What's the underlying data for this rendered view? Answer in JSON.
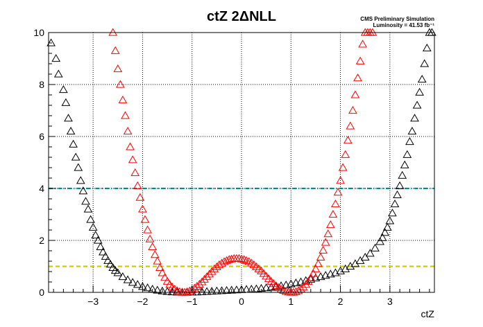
{
  "chart_data": {
    "type": "scatter",
    "title": "ctZ 2ΔNLL",
    "annotations": [
      "CMS Preliminary Simulation",
      "Luminosity = 41.53 fb⁻¹"
    ],
    "xlabel": "ctZ",
    "ylabel": "",
    "xlim": [
      -3.9,
      3.9
    ],
    "ylim": [
      0,
      10
    ],
    "x_ticks": [
      -3,
      -2,
      -1,
      0,
      1,
      2,
      3
    ],
    "y_ticks": [
      0,
      2,
      4,
      6,
      8,
      10
    ],
    "grid": true,
    "legend": "none",
    "reference_lines": [
      {
        "y": 4,
        "color": "#008b8b",
        "style": "dash-dot"
      },
      {
        "y": 1,
        "color": "#cccc00",
        "style": "dashed"
      }
    ],
    "series": [
      {
        "color": "#000000",
        "marker": "open-triangle",
        "x": [
          -3.85,
          -3.75,
          -3.7,
          -3.6,
          -3.55,
          -3.5,
          -3.45,
          -3.4,
          -3.35,
          -3.3,
          -3.25,
          -3.2,
          -3.15,
          -3.1,
          -3.05,
          -3.0,
          -2.95,
          -2.9,
          -2.85,
          -2.8,
          -2.75,
          -2.7,
          -2.65,
          -2.6,
          -2.55,
          -2.5,
          -2.4,
          -2.3,
          -2.2,
          -2.1,
          -2.0,
          -1.9,
          -1.8,
          -1.7,
          -1.6,
          -1.5,
          -1.4,
          -1.3,
          -1.2,
          -1.1,
          -1.0,
          -0.9,
          -0.8,
          -0.7,
          -0.6,
          -0.5,
          -0.4,
          -0.3,
          -0.2,
          -0.1,
          0.0,
          0.1,
          0.2,
          0.3,
          0.4,
          0.5,
          0.6,
          0.7,
          0.8,
          0.9,
          1.0,
          1.1,
          1.2,
          1.3,
          1.4,
          1.5,
          1.6,
          1.7,
          1.8,
          1.9,
          2.0,
          2.1,
          2.2,
          2.3,
          2.4,
          2.5,
          2.6,
          2.7,
          2.8,
          2.85,
          2.9,
          2.95,
          3.0,
          3.05,
          3.1,
          3.15,
          3.2,
          3.25,
          3.3,
          3.35,
          3.4,
          3.45,
          3.5,
          3.55,
          3.6,
          3.65,
          3.7,
          3.75,
          3.8,
          3.85
        ],
        "y": [
          9.6,
          9.0,
          8.4,
          7.8,
          7.3,
          6.7,
          6.2,
          5.7,
          5.2,
          4.8,
          4.3,
          3.9,
          3.5,
          3.2,
          2.8,
          2.5,
          2.2,
          2.0,
          1.75,
          1.55,
          1.38,
          1.22,
          1.08,
          0.95,
          0.84,
          0.75,
          0.6,
          0.48,
          0.38,
          0.3,
          0.22,
          0.17,
          0.12,
          0.08,
          0.05,
          0.03,
          0.015,
          0.005,
          0.0,
          0.0,
          0.005,
          0.01,
          0.02,
          0.03,
          0.04,
          0.05,
          0.06,
          0.07,
          0.08,
          0.09,
          0.1,
          0.11,
          0.12,
          0.13,
          0.15,
          0.17,
          0.19,
          0.22,
          0.25,
          0.28,
          0.32,
          0.36,
          0.4,
          0.45,
          0.5,
          0.55,
          0.6,
          0.65,
          0.7,
          0.75,
          0.82,
          0.9,
          1.0,
          1.1,
          1.22,
          1.35,
          1.5,
          1.7,
          1.95,
          2.1,
          2.3,
          2.5,
          2.75,
          3.05,
          3.4,
          3.75,
          4.1,
          4.5,
          4.9,
          5.3,
          5.8,
          6.2,
          6.7,
          7.2,
          7.7,
          8.2,
          8.8,
          9.4,
          10.0,
          10.0
        ]
      },
      {
        "color": "#ff0000",
        "marker": "open-triangle",
        "x": [
          -2.6,
          -2.55,
          -2.5,
          -2.45,
          -2.4,
          -2.35,
          -2.3,
          -2.25,
          -2.2,
          -2.15,
          -2.1,
          -2.05,
          -2.0,
          -1.95,
          -1.9,
          -1.85,
          -1.8,
          -1.75,
          -1.7,
          -1.65,
          -1.6,
          -1.55,
          -1.5,
          -1.45,
          -1.4,
          -1.35,
          -1.3,
          -1.25,
          -1.2,
          -1.15,
          -1.1,
          -1.05,
          -1.0,
          -0.95,
          -0.9,
          -0.85,
          -0.8,
          -0.75,
          -0.7,
          -0.65,
          -0.6,
          -0.55,
          -0.5,
          -0.45,
          -0.4,
          -0.35,
          -0.3,
          -0.25,
          -0.2,
          -0.15,
          -0.1,
          -0.05,
          0.0,
          0.05,
          0.1,
          0.15,
          0.2,
          0.25,
          0.3,
          0.35,
          0.4,
          0.45,
          0.5,
          0.55,
          0.6,
          0.65,
          0.7,
          0.75,
          0.8,
          0.85,
          0.9,
          0.95,
          1.0,
          1.05,
          1.1,
          1.15,
          1.2,
          1.25,
          1.3,
          1.35,
          1.4,
          1.45,
          1.5,
          1.55,
          1.6,
          1.65,
          1.7,
          1.75,
          1.8,
          1.85,
          1.9,
          1.95,
          2.0,
          2.05,
          2.1,
          2.15,
          2.2,
          2.25,
          2.3,
          2.35,
          2.4,
          2.45,
          2.5,
          2.55,
          2.6,
          2.65
        ],
        "y": [
          10.0,
          9.3,
          8.6,
          8.0,
          7.4,
          6.8,
          6.2,
          5.6,
          5.1,
          4.6,
          4.1,
          3.65,
          3.2,
          2.8,
          2.4,
          2.05,
          1.75,
          1.45,
          1.2,
          0.95,
          0.75,
          0.57,
          0.42,
          0.3,
          0.2,
          0.12,
          0.06,
          0.02,
          0.0,
          0.0,
          0.02,
          0.05,
          0.1,
          0.16,
          0.23,
          0.31,
          0.4,
          0.5,
          0.6,
          0.7,
          0.8,
          0.9,
          0.98,
          1.06,
          1.12,
          1.18,
          1.22,
          1.26,
          1.28,
          1.3,
          1.3,
          1.3,
          1.28,
          1.26,
          1.22,
          1.18,
          1.12,
          1.06,
          0.98,
          0.9,
          0.82,
          0.72,
          0.62,
          0.52,
          0.42,
          0.33,
          0.25,
          0.18,
          0.12,
          0.07,
          0.03,
          0.01,
          0.0,
          0.0,
          0.02,
          0.06,
          0.12,
          0.2,
          0.3,
          0.42,
          0.56,
          0.72,
          0.9,
          1.1,
          1.35,
          1.62,
          1.92,
          2.25,
          2.6,
          3.0,
          3.4,
          3.85,
          4.3,
          4.8,
          5.3,
          5.85,
          6.4,
          7.0,
          7.6,
          8.25,
          8.9,
          9.55,
          10.0,
          10.0,
          10.0,
          10.0
        ]
      }
    ]
  }
}
